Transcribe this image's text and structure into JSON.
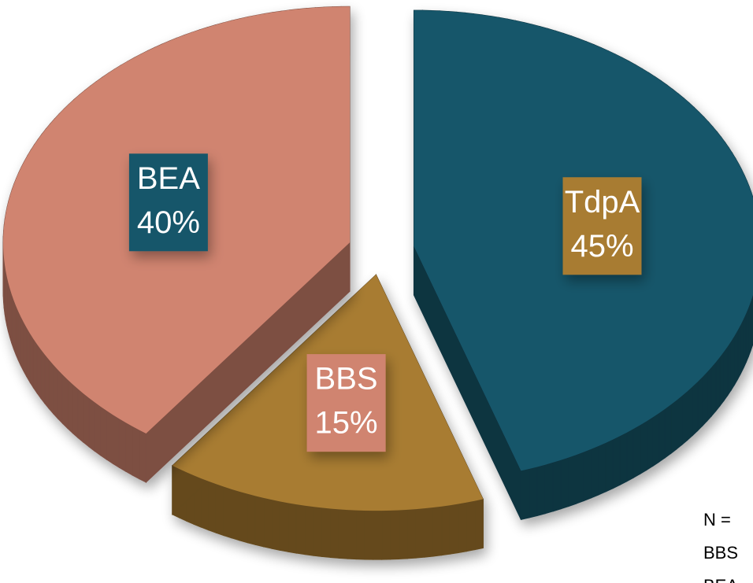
{
  "chart_data": {
    "type": "pie",
    "categories": [
      "TdpA",
      "BBS",
      "BEA"
    ],
    "values": [
      45,
      15,
      40
    ],
    "value_labels": [
      "45%",
      "15%",
      "40%"
    ],
    "colors": [
      "#17576a",
      "#a87c33",
      "#d08470"
    ],
    "label_box_colors": [
      "#a87c33",
      "#d08470",
      "#17576a"
    ],
    "annotations": [
      "N = ",
      "BBS",
      "BEA"
    ]
  }
}
